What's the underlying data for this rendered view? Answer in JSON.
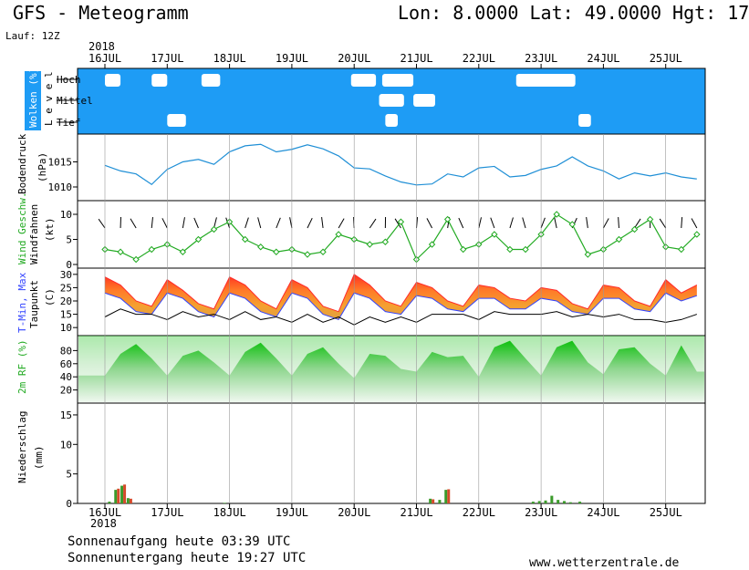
{
  "header": {
    "title": "GFS - Meteogramm",
    "coords": "Lon: 8.0000 Lat: 49.0000 Hgt: 17",
    "run": "Lauf: 12Z"
  },
  "footer": {
    "sunrise": "Sonnenaufgang heute 03:39 UTC",
    "sunset": "Sonnenuntergang heute 19:27 UTC",
    "website": "www.wetterzentrale.de"
  },
  "colors": {
    "cloud_bg": "#1e9cf5",
    "pressure_line": "#1f8fd6",
    "wind_speed": "#22aa22",
    "tmax": "#ff2a2a",
    "tmin": "#3344ff",
    "rh_fill_top": "#2ec42e",
    "rh_fill_bottom": "#eef7ee",
    "precip_green": "#3a9a2a",
    "precip_red": "#d44a2a"
  },
  "chart_data": [
    {
      "panel": "clouds",
      "type": "heatmap",
      "ylabel": "Wolken (%)",
      "ylabel2": "L e v e l",
      "levels": [
        "Hoch",
        "Mittel",
        "Tief"
      ],
      "x_days": [
        "16JUL",
        "17JUL",
        "18JUL",
        "19JUL",
        "20JUL",
        "21JUL",
        "22JUL",
        "23JUL",
        "24JUL",
        "25JUL"
      ],
      "clear_segments": [
        {
          "level": "Hoch",
          "start": 0.0,
          "end": 0.25
        },
        {
          "level": "Hoch",
          "start": 0.75,
          "end": 1.0
        },
        {
          "level": "Hoch",
          "start": 1.55,
          "end": 1.85
        },
        {
          "level": "Hoch",
          "start": 3.95,
          "end": 4.35
        },
        {
          "level": "Hoch",
          "start": 4.45,
          "end": 4.95
        },
        {
          "level": "Hoch",
          "start": 6.6,
          "end": 7.55
        },
        {
          "level": "Mittel",
          "start": 4.4,
          "end": 4.8
        },
        {
          "level": "Mittel",
          "start": 4.95,
          "end": 5.3
        },
        {
          "level": "Tief",
          "start": 1.0,
          "end": 1.3
        },
        {
          "level": "Tief",
          "start": 4.5,
          "end": 4.7
        },
        {
          "level": "Tief",
          "start": 7.6,
          "end": 7.8
        }
      ]
    },
    {
      "panel": "pressure",
      "type": "line",
      "ylabel": "Bodendruck",
      "unit": "(hPa)",
      "ylim": [
        1008,
        1020
      ],
      "yticks": [
        1010,
        1015
      ],
      "x_days": [
        0,
        0.25,
        0.5,
        0.75,
        1,
        1.25,
        1.5,
        1.75,
        2,
        2.25,
        2.5,
        2.75,
        3,
        3.25,
        3.5,
        3.75,
        4,
        4.25,
        4.5,
        4.75,
        5,
        5.25,
        5.5,
        5.75,
        6,
        6.25,
        6.5,
        6.75,
        7,
        7.25,
        7.5,
        7.75,
        8,
        8.25,
        8.5,
        8.75,
        9,
        9.25,
        9.5
      ],
      "values": [
        1014.3,
        1013.2,
        1012.6,
        1010.5,
        1013.5,
        1015.0,
        1015.5,
        1014.5,
        1017.0,
        1018.2,
        1018.5,
        1017.0,
        1017.5,
        1018.4,
        1017.6,
        1016.2,
        1013.8,
        1013.6,
        1012.2,
        1011.0,
        1010.4,
        1010.6,
        1012.6,
        1012.0,
        1013.8,
        1014.1,
        1012.0,
        1012.3,
        1013.5,
        1014.2,
        1016.0,
        1014.2,
        1013.2,
        1011.6,
        1012.8,
        1012.2,
        1012.8,
        1012.0,
        1011.6
      ]
    },
    {
      "panel": "wind",
      "type": "line",
      "ylabel": "Wind Geschw.",
      "ylabel2": "Windfahnen",
      "unit": "(kt)",
      "ylim": [
        0,
        12
      ],
      "yticks": [
        0,
        5,
        10
      ],
      "x_days": [
        0,
        0.25,
        0.5,
        0.75,
        1,
        1.25,
        1.5,
        1.75,
        2,
        2.25,
        2.5,
        2.75,
        3,
        3.25,
        3.5,
        3.75,
        4,
        4.25,
        4.5,
        4.75,
        5,
        5.25,
        5.5,
        5.75,
        6,
        6.25,
        6.5,
        6.75,
        7,
        7.25,
        7.5,
        7.75,
        8,
        8.25,
        8.5,
        8.75,
        9,
        9.25,
        9.5
      ],
      "values": [
        3,
        2.5,
        1,
        3,
        4,
        2.5,
        5,
        7,
        8.5,
        5,
        3.5,
        2.5,
        3,
        2,
        2.5,
        6,
        5,
        4,
        4.5,
        8.5,
        1,
        4,
        9,
        3,
        4,
        6,
        3,
        3,
        6,
        10,
        8,
        2,
        3,
        5,
        7,
        9,
        3.5,
        3,
        6
      ]
    },
    {
      "panel": "temperature",
      "type": "area",
      "ylabel": "T-Min, Max",
      "ylabel2": "Taupunkt",
      "unit": "(C)",
      "ylim": [
        8,
        32
      ],
      "yticks": [
        10,
        15,
        20,
        25,
        30
      ],
      "x_days": [
        0,
        0.25,
        0.5,
        0.75,
        1,
        1.25,
        1.5,
        1.75,
        2,
        2.25,
        2.5,
        2.75,
        3,
        3.25,
        3.5,
        3.75,
        4,
        4.25,
        4.5,
        4.75,
        5,
        5.25,
        5.5,
        5.75,
        6,
        6.25,
        6.5,
        6.75,
        7,
        7.25,
        7.5,
        7.75,
        8,
        8.25,
        8.5,
        8.75,
        9,
        9.25,
        9.5
      ],
      "tmax": [
        29,
        26,
        20,
        18,
        28,
        24,
        19,
        17,
        29,
        26,
        20,
        17,
        28,
        25,
        18,
        16,
        30,
        26,
        20,
        18,
        27,
        25,
        20,
        18,
        26,
        25,
        21,
        20,
        25,
        24,
        19,
        17,
        26,
        25,
        20,
        18,
        28,
        23,
        26
      ],
      "tmin": [
        23,
        21,
        16,
        15,
        23,
        21,
        16,
        14,
        23,
        21,
        16,
        14,
        23,
        21,
        15,
        13,
        23,
        21,
        16,
        15,
        22,
        21,
        17,
        16,
        21,
        21,
        17,
        17,
        21,
        20,
        16,
        15,
        21,
        21,
        17,
        16,
        23,
        20,
        22
      ],
      "dewpoint": [
        14,
        17,
        15,
        15,
        13,
        16,
        14,
        15,
        13,
        16,
        13,
        14,
        12,
        15,
        12,
        14,
        11,
        14,
        12,
        14,
        12,
        15,
        15,
        15,
        13,
        16,
        15,
        15,
        15,
        16,
        14,
        15,
        14,
        15,
        13,
        13,
        12,
        13,
        15
      ]
    },
    {
      "panel": "humidity",
      "type": "area",
      "ylabel": "2m RF (%)",
      "ylim": [
        0,
        100
      ],
      "yticks": [
        20,
        40,
        60,
        80
      ],
      "x_days": [
        0,
        0.25,
        0.5,
        0.75,
        1,
        1.25,
        1.5,
        1.75,
        2,
        2.25,
        2.5,
        2.75,
        3,
        3.25,
        3.5,
        3.75,
        4,
        4.25,
        4.5,
        4.75,
        5,
        5.25,
        5.5,
        5.75,
        6,
        6.25,
        6.5,
        6.75,
        7,
        7.25,
        7.5,
        7.75,
        8,
        8.25,
        8.5,
        8.75,
        9,
        9.25,
        9.5
      ],
      "values": [
        42,
        75,
        90,
        68,
        42,
        72,
        80,
        62,
        42,
        78,
        92,
        68,
        42,
        75,
        85,
        60,
        38,
        75,
        72,
        52,
        48,
        78,
        70,
        72,
        40,
        85,
        95,
        68,
        42,
        85,
        95,
        62,
        44,
        82,
        85,
        60,
        42,
        88,
        48
      ]
    },
    {
      "panel": "precipitation",
      "type": "bar",
      "ylabel": "Niederschlag",
      "unit": "(mm)",
      "ylim": [
        0,
        17
      ],
      "yticks": [
        0,
        5,
        10,
        15
      ],
      "bars": [
        {
          "x": 0.05,
          "values": [
            0.3
          ]
        },
        {
          "x": 0.15,
          "values": [
            2.3,
            2.5
          ]
        },
        {
          "x": 0.25,
          "values": [
            3.0,
            3.2
          ]
        },
        {
          "x": 0.35,
          "values": [
            0.9,
            0.8
          ]
        },
        {
          "x": 1.9,
          "values": [
            0.1
          ]
        },
        {
          "x": 5.2,
          "values": [
            0.8,
            0.7
          ]
        },
        {
          "x": 5.35,
          "values": [
            0.6
          ]
        },
        {
          "x": 5.45,
          "values": [
            2.3,
            2.4
          ]
        },
        {
          "x": 6.85,
          "values": [
            0.3
          ]
        },
        {
          "x": 6.95,
          "values": [
            0.4
          ]
        },
        {
          "x": 7.05,
          "values": [
            0.5
          ]
        },
        {
          "x": 7.15,
          "values": [
            1.3
          ]
        },
        {
          "x": 7.25,
          "values": [
            0.6
          ]
        },
        {
          "x": 7.35,
          "values": [
            0.4
          ]
        },
        {
          "x": 7.45,
          "values": [
            0.2
          ]
        },
        {
          "x": 7.6,
          "values": [
            0.3
          ]
        }
      ]
    }
  ],
  "axis": {
    "year": "2018",
    "days": [
      "16JUL",
      "17JUL",
      "18JUL",
      "19JUL",
      "20JUL",
      "21JUL",
      "22JUL",
      "23JUL",
      "24JUL",
      "25JUL"
    ]
  }
}
